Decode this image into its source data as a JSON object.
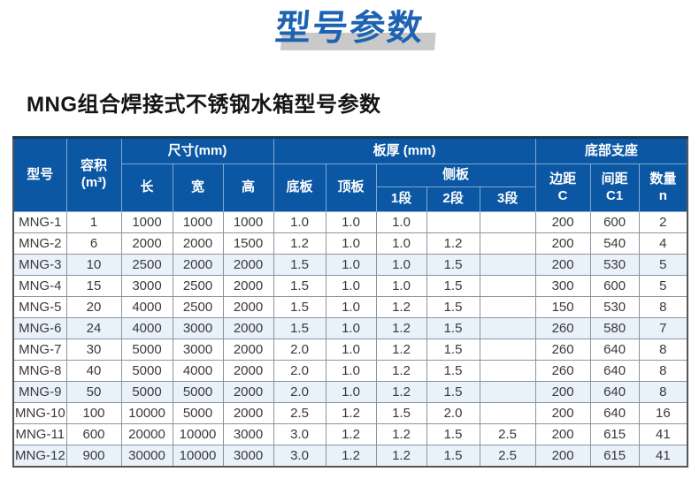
{
  "title": "型号参数",
  "subtitle": "MNG组合焊接式不锈钢水箱型号参数",
  "colors": {
    "title_blue": "#1d63b2",
    "title_shadow_gray": "#c9c9c9",
    "header_bg_blue": "#0b57a4",
    "header_border_light_blue": "#7fa9d3",
    "row_highlight_blue": "#e9f2fa",
    "cell_border_gray": "#8f9499",
    "outer_border_gray": "#555555"
  },
  "table": {
    "header": {
      "model": "型号",
      "volume_line1": "容积",
      "volume_line2": "(m³)",
      "size_group": "尺寸(mm)",
      "length": "长",
      "width": "宽",
      "height": "高",
      "thickness_group": "板厚 (mm)",
      "bottom_plate": "底板",
      "top_plate": "顶板",
      "side_plate_group": "侧板",
      "seg1": "1段",
      "seg2": "2段",
      "seg3": "3段",
      "support_group": "底部支座",
      "edge_line1": "边距",
      "edge_line2": "C",
      "spacing_line1": "间距",
      "spacing_line2": "C1",
      "qty_line1": "数量",
      "qty_line2": "n"
    },
    "highlighted_rows": [
      2,
      5,
      8,
      11
    ],
    "rows": [
      [
        "MNG-1",
        "1",
        "1000",
        "1000",
        "1000",
        "1.0",
        "1.0",
        "1.0",
        "",
        "",
        "200",
        "600",
        "2"
      ],
      [
        "MNG-2",
        "6",
        "2000",
        "2000",
        "1500",
        "1.2",
        "1.0",
        "1.0",
        "1.2",
        "",
        "200",
        "540",
        "4"
      ],
      [
        "MNG-3",
        "10",
        "2500",
        "2000",
        "2000",
        "1.5",
        "1.0",
        "1.0",
        "1.5",
        "",
        "200",
        "530",
        "5"
      ],
      [
        "MNG-4",
        "15",
        "3000",
        "2500",
        "2000",
        "1.5",
        "1.0",
        "1.0",
        "1.5",
        "",
        "300",
        "600",
        "5"
      ],
      [
        "MNG-5",
        "20",
        "4000",
        "2500",
        "2000",
        "1.5",
        "1.0",
        "1.2",
        "1.5",
        "",
        "150",
        "530",
        "8"
      ],
      [
        "MNG-6",
        "24",
        "4000",
        "3000",
        "2000",
        "1.5",
        "1.0",
        "1.2",
        "1.5",
        "",
        "260",
        "580",
        "7"
      ],
      [
        "MNG-7",
        "30",
        "5000",
        "3000",
        "2000",
        "2.0",
        "1.0",
        "1.2",
        "1.5",
        "",
        "260",
        "640",
        "8"
      ],
      [
        "MNG-8",
        "40",
        "5000",
        "4000",
        "2000",
        "2.0",
        "1.0",
        "1.2",
        "1.5",
        "",
        "260",
        "640",
        "8"
      ],
      [
        "MNG-9",
        "50",
        "5000",
        "5000",
        "2000",
        "2.0",
        "1.0",
        "1.2",
        "1.5",
        "",
        "200",
        "640",
        "8"
      ],
      [
        "MNG-10",
        "100",
        "10000",
        "5000",
        "2000",
        "2.5",
        "1.2",
        "1.5",
        "2.0",
        "",
        "200",
        "640",
        "16"
      ],
      [
        "MNG-11",
        "600",
        "20000",
        "10000",
        "3000",
        "3.0",
        "1.2",
        "1.2",
        "1.5",
        "2.5",
        "200",
        "615",
        "41"
      ],
      [
        "MNG-12",
        "900",
        "30000",
        "10000",
        "3000",
        "3.0",
        "1.2",
        "1.2",
        "1.5",
        "2.5",
        "200",
        "615",
        "41"
      ]
    ]
  }
}
